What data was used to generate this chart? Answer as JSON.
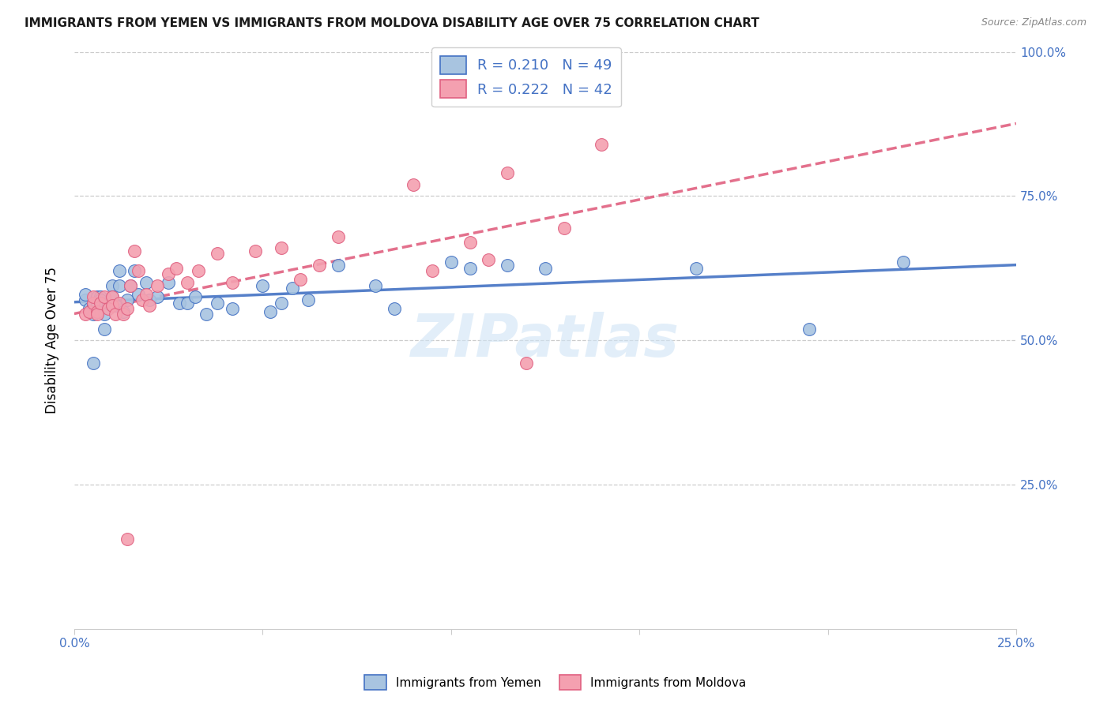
{
  "title": "IMMIGRANTS FROM YEMEN VS IMMIGRANTS FROM MOLDOVA DISABILITY AGE OVER 75 CORRELATION CHART",
  "source": "Source: ZipAtlas.com",
  "ylabel": "Disability Age Over 75",
  "xlim": [
    0.0,
    0.25
  ],
  "ylim": [
    0.0,
    1.0
  ],
  "x_ticks": [
    0.0,
    0.05,
    0.1,
    0.15,
    0.2,
    0.25
  ],
  "x_tick_labels": [
    "0.0%",
    "",
    "",
    "",
    "",
    "25.0%"
  ],
  "y_ticks": [
    0.0,
    0.25,
    0.5,
    0.75,
    1.0
  ],
  "y_tick_labels_right": [
    "",
    "25.0%",
    "50.0%",
    "75.0%",
    "100.0%"
  ],
  "legend_labels": [
    "R = 0.210   N = 49",
    "R = 0.222   N = 42"
  ],
  "bottom_legend_labels": [
    "Immigrants from Yemen",
    "Immigrants from Moldova"
  ],
  "color_yemen": "#a8c4e0",
  "color_moldova": "#f4a0b0",
  "trendline_color_yemen": "#4472c4",
  "trendline_color_moldova": "#e06080",
  "watermark": "ZIPatlas",
  "yemen_x": [
    0.003,
    0.003,
    0.004,
    0.005,
    0.005,
    0.005,
    0.006,
    0.006,
    0.007,
    0.007,
    0.008,
    0.008,
    0.009,
    0.01,
    0.01,
    0.011,
    0.012,
    0.012,
    0.013,
    0.014,
    0.015,
    0.016,
    0.017,
    0.019,
    0.02,
    0.022,
    0.025,
    0.028,
    0.03,
    0.032,
    0.035,
    0.038,
    0.042,
    0.05,
    0.052,
    0.055,
    0.058,
    0.062,
    0.07,
    0.08,
    0.085,
    0.1,
    0.105,
    0.115,
    0.125,
    0.165,
    0.195,
    0.22,
    0.005
  ],
  "yemen_y": [
    0.57,
    0.58,
    0.555,
    0.565,
    0.56,
    0.545,
    0.575,
    0.565,
    0.575,
    0.57,
    0.545,
    0.52,
    0.565,
    0.595,
    0.575,
    0.56,
    0.595,
    0.62,
    0.55,
    0.57,
    0.595,
    0.62,
    0.58,
    0.6,
    0.57,
    0.575,
    0.6,
    0.565,
    0.565,
    0.575,
    0.545,
    0.565,
    0.555,
    0.595,
    0.55,
    0.565,
    0.59,
    0.57,
    0.63,
    0.595,
    0.555,
    0.635,
    0.625,
    0.63,
    0.625,
    0.625,
    0.52,
    0.635,
    0.46
  ],
  "moldova_x": [
    0.003,
    0.004,
    0.005,
    0.005,
    0.006,
    0.006,
    0.007,
    0.008,
    0.009,
    0.01,
    0.01,
    0.011,
    0.012,
    0.013,
    0.014,
    0.015,
    0.016,
    0.017,
    0.018,
    0.019,
    0.02,
    0.022,
    0.025,
    0.027,
    0.03,
    0.033,
    0.038,
    0.042,
    0.048,
    0.055,
    0.06,
    0.065,
    0.07,
    0.09,
    0.095,
    0.105,
    0.11,
    0.115,
    0.12,
    0.13,
    0.14,
    0.014
  ],
  "moldova_y": [
    0.545,
    0.55,
    0.565,
    0.575,
    0.55,
    0.545,
    0.565,
    0.575,
    0.555,
    0.575,
    0.56,
    0.545,
    0.565,
    0.545,
    0.555,
    0.595,
    0.655,
    0.62,
    0.57,
    0.58,
    0.56,
    0.595,
    0.615,
    0.625,
    0.6,
    0.62,
    0.65,
    0.6,
    0.655,
    0.66,
    0.605,
    0.63,
    0.68,
    0.77,
    0.62,
    0.67,
    0.64,
    0.79,
    0.46,
    0.695,
    0.84,
    0.155
  ]
}
